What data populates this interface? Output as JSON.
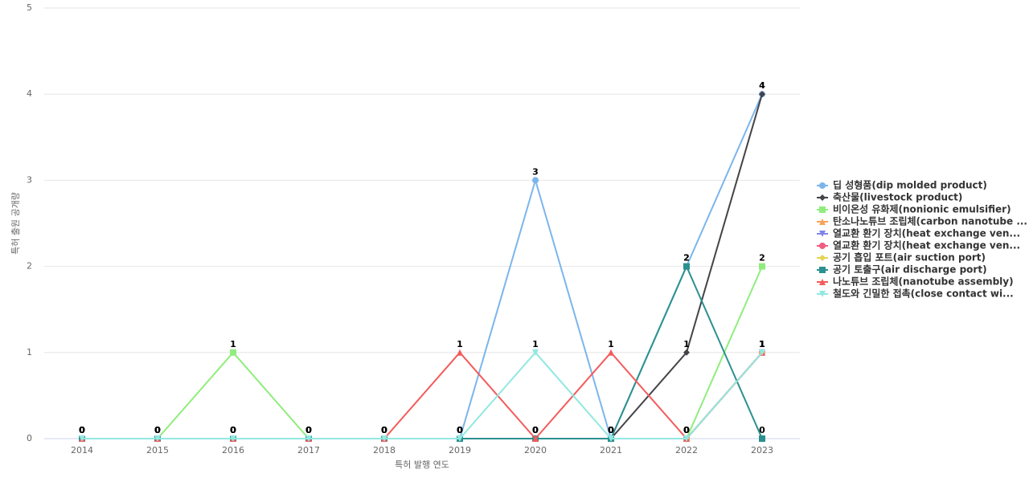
{
  "chart_data": {
    "type": "line",
    "x_label": "특허 발행 연도",
    "y_label": "특허 출원 공개량",
    "categories": [
      "2014",
      "2015",
      "2016",
      "2017",
      "2018",
      "2019",
      "2020",
      "2021",
      "2022",
      "2023"
    ],
    "ylim": [
      0,
      5
    ],
    "yticks": [
      0,
      1,
      2,
      3,
      4,
      5
    ],
    "grid": true,
    "legend": "right",
    "series": [
      {
        "name": "딥 성형품(dip molded product)",
        "color": "#7cb5ec",
        "marker": "circle",
        "values": [
          0,
          0,
          0,
          0,
          0,
          0,
          3,
          0,
          2,
          4
        ]
      },
      {
        "name": "축산물(livestock product)",
        "color": "#434348",
        "marker": "diamond",
        "values": [
          0,
          0,
          0,
          0,
          0,
          0,
          0,
          0,
          1,
          4
        ]
      },
      {
        "name": "비이온성 유화제(nonionic emulsifier)",
        "color": "#90ed7d",
        "marker": "square",
        "values": [
          0,
          0,
          1,
          0,
          0,
          0,
          0,
          0,
          0,
          2
        ]
      },
      {
        "name": "탄소나노튜브 조립체(carbon nanotube ...",
        "color": "#f7a35c",
        "marker": "triangle",
        "values": [
          0,
          0,
          0,
          0,
          0,
          0,
          0,
          0,
          0,
          1
        ]
      },
      {
        "name": "열교환 환기 장치(heat exchange ven...",
        "color": "#8085e9",
        "marker": "triangle-down",
        "values": [
          0,
          0,
          0,
          0,
          0,
          0,
          0,
          0,
          0,
          1
        ]
      },
      {
        "name": "열교환 환기 장치(heat exchange ven...",
        "color": "#f15c80",
        "marker": "circle",
        "values": [
          0,
          0,
          0,
          0,
          0,
          0,
          0,
          0,
          0,
          1
        ]
      },
      {
        "name": "공기 흡입 포트(air suction port)",
        "color": "#e4d354",
        "marker": "diamond",
        "values": [
          0,
          0,
          0,
          0,
          0,
          0,
          0,
          0,
          0,
          1
        ]
      },
      {
        "name": "공기 토출구(air discharge port)",
        "color": "#2b908f",
        "marker": "square",
        "values": [
          0,
          0,
          0,
          0,
          0,
          0,
          0,
          0,
          2,
          0
        ]
      },
      {
        "name": "나노튜브 조립체(nanotube assembly)",
        "color": "#f45b5b",
        "marker": "triangle",
        "values": [
          0,
          0,
          0,
          0,
          0,
          1,
          0,
          1,
          0,
          1
        ]
      },
      {
        "name": "철도와 긴밀한 접촉(close contact wi...",
        "color": "#91e8e1",
        "marker": "triangle-down",
        "values": [
          0,
          0,
          0,
          0,
          0,
          0,
          1,
          0,
          0,
          1
        ]
      }
    ]
  }
}
